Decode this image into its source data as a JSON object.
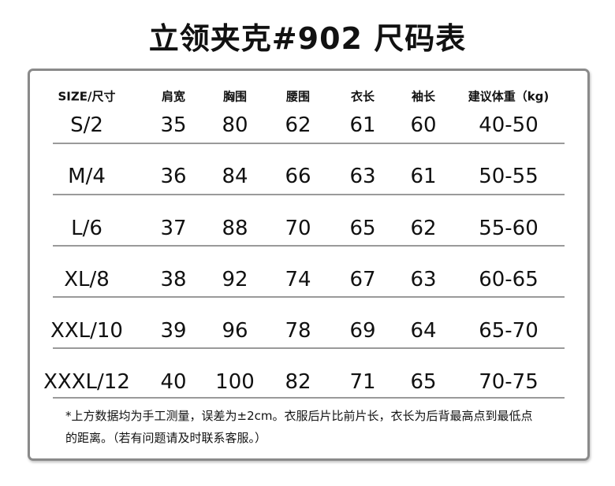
{
  "title": "立领夹克#902 尺码表",
  "headers": [
    "SIZE/尺寸",
    "肩宽",
    "胸围",
    "腰围",
    "衣长",
    "袖长",
    "建议体重（kg)"
  ],
  "rows": [
    [
      "S/2",
      "35",
      "80",
      "62",
      "61",
      "60",
      "40-50"
    ],
    [
      "M/4",
      "36",
      "84",
      "66",
      "63",
      "61",
      "50-55"
    ],
    [
      "L/6",
      "37",
      "88",
      "70",
      "65",
      "62",
      "55-60"
    ],
    [
      "XL/8",
      "38",
      "92",
      "74",
      "67",
      "63",
      "60-65"
    ],
    [
      "XXL/10",
      "39",
      "96",
      "78",
      "69",
      "64",
      "65-70"
    ],
    [
      "XXXL/12",
      "40",
      "100",
      "82",
      "71",
      "65",
      "70-75"
    ]
  ],
  "note": {
    "line1": "*上方数据均为手工测量，误差为±2cm。衣服后片比前片长，衣长为后背最高点到最低点",
    "line2": "的距离。（若有问题请及时联系客服。）"
  }
}
